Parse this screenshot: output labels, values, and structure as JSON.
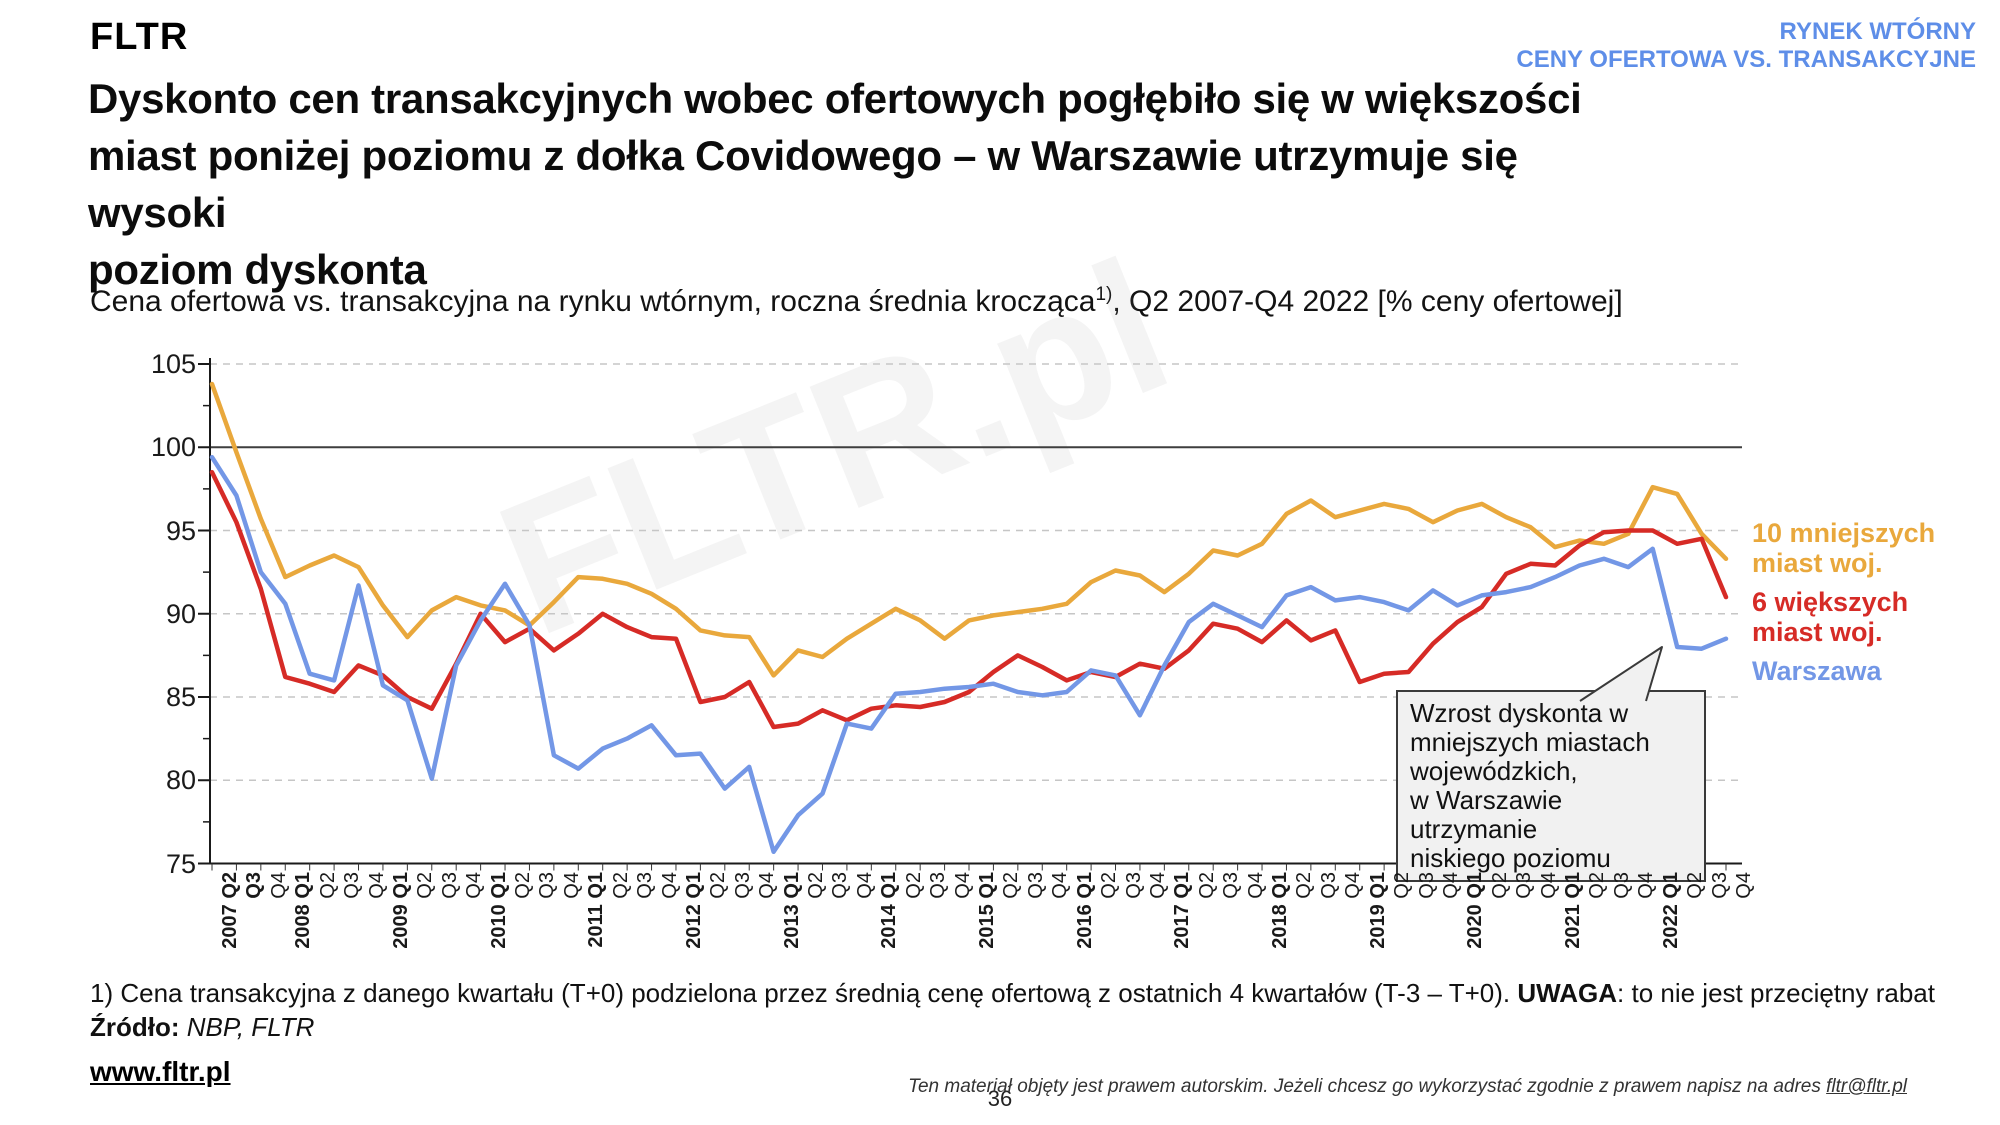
{
  "header": {
    "logo": "FLTR",
    "tagline_line1": "RYNEK WTÓRNY",
    "tagline_line2": "CENY OFERTOWA VS. TRANSAKCYJNE",
    "tagline_color": "#5E8EE8"
  },
  "title": "Dyskonto cen transakcyjnych wobec ofertowych pogłębiło się w większości\nmiast poniżej poziomu z dołka Covidowego – w Warszawie utrzymuje się wysoki\npoziom dyskonta",
  "subtitle": {
    "part1": "Cena ofertowa vs. transakcyjna na rynku wtórnym, roczna średnia krocząca",
    "sup": "1)",
    "part2": ", Q2 2007-Q4 2022 [% ceny ofertowej]"
  },
  "watermark": "FLTR.pl",
  "chart_data": {
    "type": "line",
    "title": "Cena ofertowa vs. transakcyjna na rynku wtórnym, roczna średnia krocząca 1), Q2 2007-Q4 2022 [% ceny ofertowej]",
    "xlabel": "",
    "ylabel": "",
    "ylim": [
      75,
      105
    ],
    "yticks": [
      75,
      80,
      85,
      90,
      95,
      100,
      105
    ],
    "grid": "horizontal dashed, solid line at 100, legend at right",
    "categories": [
      "2007 Q2",
      "Q3",
      "Q4",
      "2008 Q1",
      "Q2",
      "Q3",
      "Q4",
      "2009 Q1",
      "Q2",
      "Q3",
      "Q4",
      "2010 Q1",
      "Q2",
      "Q3",
      "Q4",
      "2011 Q1",
      "Q2",
      "Q3",
      "Q4",
      "2012 Q1",
      "Q2",
      "Q3",
      "Q4",
      "2013 Q1",
      "Q2",
      "Q3",
      "Q4",
      "2014 Q1",
      "Q2",
      "Q3",
      "Q4",
      "2015 Q1",
      "Q2",
      "Q3",
      "Q4",
      "2016 Q1",
      "Q2",
      "Q3",
      "Q4",
      "2017 Q1",
      "Q2",
      "Q3",
      "Q4",
      "2018 Q1",
      "Q2",
      "Q3",
      "Q4",
      "2019 Q1",
      "Q2",
      "Q3",
      "Q4",
      "2020 Q1",
      "Q2",
      "Q3",
      "Q4",
      "2021 Q1",
      "Q2",
      "Q3",
      "Q4",
      "2022 Q1",
      "Q2",
      "Q3",
      "Q4"
    ],
    "series": [
      {
        "name": "10 mniejszych miast woj.",
        "color": "#E9A83C",
        "values": [
          103.8,
          99.7,
          95.7,
          92.2,
          92.9,
          93.5,
          92.8,
          90.5,
          88.6,
          90.2,
          91.0,
          90.5,
          90.2,
          89.3,
          90.7,
          92.2,
          92.1,
          91.8,
          91.2,
          90.3,
          89.0,
          88.7,
          88.6,
          86.3,
          87.8,
          87.4,
          88.5,
          89.4,
          90.3,
          89.6,
          88.5,
          89.6,
          89.9,
          90.1,
          90.3,
          90.6,
          91.9,
          92.6,
          92.3,
          91.3,
          92.4,
          93.8,
          93.5,
          94.2,
          96.0,
          96.8,
          95.8,
          96.2,
          96.6,
          96.3,
          95.5,
          96.2,
          96.6,
          95.8,
          95.2,
          94.0,
          94.4,
          94.2,
          94.8,
          97.6,
          97.2,
          94.8,
          93.3
        ]
      },
      {
        "name": "6 większych miast woj.",
        "color": "#D62B26",
        "values": [
          98.5,
          95.5,
          91.5,
          86.2,
          85.8,
          85.3,
          86.9,
          86.3,
          85.0,
          84.3,
          87.0,
          90.0,
          88.3,
          89.1,
          87.8,
          88.8,
          90.0,
          89.2,
          88.6,
          88.5,
          84.7,
          85.0,
          85.9,
          83.2,
          83.4,
          84.2,
          83.6,
          84.3,
          84.5,
          84.4,
          84.7,
          85.3,
          86.5,
          87.5,
          86.8,
          86.0,
          86.5,
          86.2,
          87.0,
          86.7,
          87.8,
          89.4,
          89.1,
          88.3,
          89.6,
          88.4,
          89.0,
          85.9,
          86.4,
          86.5,
          88.2,
          89.5,
          90.4,
          92.4,
          93.0,
          92.9,
          94.1,
          94.9,
          95.0,
          95.0,
          94.2,
          94.5,
          91.0
        ]
      },
      {
        "name": "Warszawa",
        "color": "#7397E6",
        "values": [
          99.4,
          97.1,
          92.5,
          90.6,
          86.4,
          86.0,
          91.7,
          85.7,
          84.8,
          80.1,
          86.9,
          89.6,
          91.8,
          89.3,
          81.5,
          80.7,
          81.9,
          82.5,
          83.3,
          81.5,
          81.6,
          79.5,
          80.8,
          75.7,
          77.9,
          79.2,
          83.4,
          83.1,
          85.2,
          85.3,
          85.5,
          85.6,
          85.8,
          85.3,
          85.1,
          85.3,
          86.6,
          86.3,
          83.9,
          86.9,
          89.5,
          90.6,
          89.9,
          89.2,
          91.1,
          91.6,
          90.8,
          91.0,
          90.7,
          90.2,
          91.4,
          90.5,
          91.1,
          91.3,
          91.6,
          92.2,
          92.9,
          93.3,
          92.8,
          93.9,
          88.0,
          87.9,
          88.5
        ]
      }
    ],
    "legend": [
      {
        "label": "10 mniejszych\nmiast woj."
      },
      {
        "label": "6 większych\nmiast woj."
      },
      {
        "label": "Warszawa"
      }
    ],
    "annotation": {
      "text": "Wzrost dyskonta w\nmniejszych miastach\nwojewódzkich,\nw Warszawie utrzymanie\nniskiego poziomu"
    }
  },
  "footnote": {
    "part1": "1) Cena transakcyjna z danego kwartału (T+0) podzielona przez średnią cenę ofertową z ostatnich 4 kwartałów (T-3 – T+0). ",
    "emphasis": "UWAGA",
    "part2": ": to nie jest przeciętny rabat"
  },
  "source": {
    "label": "Źródło:",
    "value": " NBP, FLTR"
  },
  "footer": {
    "website": "www.fltr.pl",
    "page": "36",
    "copyright_text": "Ten materiał objęty jest prawem autorskim. Jeżeli chcesz go wykorzystać zgodnie z prawem napisz na adres ",
    "copyright_email": "fltr@fltr.pl"
  }
}
